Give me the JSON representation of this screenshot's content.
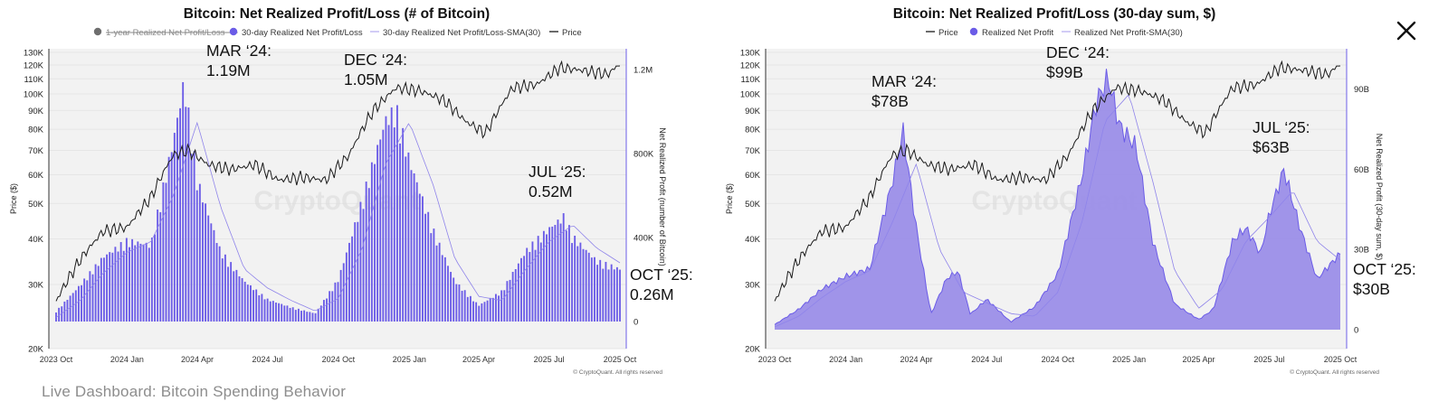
{
  "footer_caption": "Live Dashboard: Bitcoin Spending Behavior",
  "colors": {
    "accent": "#6b5ce7",
    "area_fill": "#9b8ee8",
    "price_line": "#1a1a1a",
    "plot_bg": "#f2f2f2",
    "legend_disabled": "#6e6e6e"
  },
  "close_icon": "close-icon",
  "chart_data": [
    {
      "type": "bar",
      "title": "Bitcoin: Net Realized Profit/Loss (# of Bitcoin)",
      "legend": [
        {
          "label": "1-year Realized Net Profit/Loss",
          "marker": "dot",
          "color": "#6e6e6e",
          "disabled": true
        },
        {
          "label": "30-day Realized Net Profit/Loss",
          "marker": "dot",
          "color": "#6b5ce7",
          "disabled": false
        },
        {
          "label": "30-day Realized Net Profit/Loss-SMA(30)",
          "marker": "line",
          "color": "#b9b1f0",
          "disabled": false
        },
        {
          "label": "Price",
          "marker": "line",
          "color": "#1a1a1a",
          "disabled": false
        }
      ],
      "ylabel_left": "Price ($)",
      "ylabel_right": "Net Realized Profit (number of Bitcoin)",
      "scale_left": "log",
      "left_ticks": [
        "130K",
        "120K",
        "110K",
        "100K",
        "90K",
        "80K",
        "70K",
        "60K",
        "50K",
        "40K",
        "30K",
        "20K"
      ],
      "right_ticks": [
        "1.2M",
        "800K",
        "400K",
        "0"
      ],
      "ylim_right": [
        0,
        1300000
      ],
      "x_ticks": [
        "2023 Oct",
        "2024 Jan",
        "2024 Apr",
        "2024 Jul",
        "2024 Oct",
        "2025 Jan",
        "2025 Apr",
        "2025 Jul",
        "2025 Oct"
      ],
      "series": [
        {
          "name": "30-day Realized Net Profit/Loss",
          "style": "bars",
          "x": [
            "2023-10-01",
            "2023-11-01",
            "2023-12-01",
            "2024-01-01",
            "2024-02-01",
            "2024-03-01",
            "2024-03-15",
            "2024-04-01",
            "2024-05-01",
            "2024-06-01",
            "2024-07-01",
            "2024-08-01",
            "2024-09-01",
            "2024-10-01",
            "2024-11-01",
            "2024-12-01",
            "2024-12-15",
            "2025-01-01",
            "2025-02-01",
            "2025-03-01",
            "2025-04-01",
            "2025-05-01",
            "2025-06-01",
            "2025-07-01",
            "2025-07-20",
            "2025-08-01",
            "2025-09-01",
            "2025-10-01"
          ],
          "values": [
            50000,
            180000,
            320000,
            400000,
            380000,
            900000,
            1190000,
            700000,
            350000,
            200000,
            110000,
            70000,
            40000,
            210000,
            600000,
            1000000,
            1050000,
            800000,
            450000,
            200000,
            80000,
            150000,
            350000,
            460000,
            520000,
            420000,
            300000,
            260000
          ]
        },
        {
          "name": "30-day Realized Net Profit/Loss-SMA(30)",
          "style": "line",
          "x": [
            "2023-10-01",
            "2023-11-01",
            "2023-12-01",
            "2024-01-01",
            "2024-02-01",
            "2024-03-01",
            "2024-04-01",
            "2024-05-01",
            "2024-06-01",
            "2024-07-01",
            "2024-08-01",
            "2024-09-01",
            "2024-10-01",
            "2024-11-01",
            "2024-12-01",
            "2025-01-01",
            "2025-02-01",
            "2025-03-01",
            "2025-04-01",
            "2025-05-01",
            "2025-06-01",
            "2025-07-01",
            "2025-08-01",
            "2025-09-01",
            "2025-10-01"
          ],
          "values": [
            20000,
            100000,
            230000,
            330000,
            380000,
            600000,
            950000,
            550000,
            250000,
            160000,
            100000,
            50000,
            110000,
            350000,
            750000,
            950000,
            650000,
            300000,
            120000,
            100000,
            250000,
            380000,
            460000,
            350000,
            280000
          ]
        },
        {
          "name": "Price",
          "style": "line",
          "x": [
            "2023-10-01",
            "2023-11-01",
            "2023-12-01",
            "2024-01-01",
            "2024-02-01",
            "2024-03-01",
            "2024-03-20",
            "2024-04-15",
            "2024-05-15",
            "2024-06-15",
            "2024-07-15",
            "2024-08-15",
            "2024-09-15",
            "2024-10-15",
            "2024-11-15",
            "2024-12-15",
            "2025-01-15",
            "2025-02-15",
            "2025-03-15",
            "2025-04-10",
            "2025-05-15",
            "2025-06-15",
            "2025-07-15",
            "2025-08-15",
            "2025-09-15",
            "2025-10-01"
          ],
          "values": [
            27000,
            35000,
            42000,
            43000,
            52000,
            68000,
            70000,
            64000,
            62000,
            64000,
            58000,
            59000,
            58000,
            68000,
            90000,
            104000,
            102000,
            96000,
            84000,
            78000,
            104000,
            106000,
            118000,
            116000,
            113000,
            121000
          ]
        }
      ],
      "annotations": [
        {
          "text": [
            "MAR ‘24:",
            "1.19M"
          ],
          "x": "2024-03-01",
          "y": 1190000
        },
        {
          "text": [
            "DEC ‘24:",
            "1.05M"
          ],
          "x": "2024-11-20",
          "y": 1050000
        },
        {
          "text": [
            "JUL ‘25:",
            "0.52M"
          ],
          "x": "2025-07-01",
          "y": 520000
        },
        {
          "text": [
            "OCT ‘25:",
            "0.26M"
          ],
          "x": "2025-10-08",
          "y": 260000
        }
      ],
      "watermark": "CryptoQuant",
      "copyright": "© CryptoQuant. All rights reserved"
    },
    {
      "type": "area",
      "title": "Bitcoin: Net Realized Profit/Loss (30-day sum, $)",
      "legend": [
        {
          "label": "Price",
          "marker": "line",
          "color": "#1a1a1a",
          "disabled": false
        },
        {
          "label": "Realized Net Profit",
          "marker": "dot",
          "color": "#6b5ce7",
          "disabled": false
        },
        {
          "label": "Realized Net Profit-SMA(30)",
          "marker": "line",
          "color": "#b9b1f0",
          "disabled": false
        }
      ],
      "ylabel_left": "Price ($)",
      "ylabel_right": "Net Realized Profit (30-day sum, $)",
      "scale_left": "log",
      "left_ticks": [
        "130K",
        "120K",
        "110K",
        "100K",
        "90K",
        "80K",
        "70K",
        "60K",
        "50K",
        "40K",
        "30K",
        "20K"
      ],
      "right_ticks": [
        "90B",
        "60B",
        "30B",
        "0"
      ],
      "ylim_right": [
        0,
        105000000000
      ],
      "x_ticks": [
        "2023 Oct",
        "2024 Jan",
        "2024 Apr",
        "2024 Jul",
        "2024 Oct",
        "2025 Jan",
        "2025 Apr",
        "2025 Jul",
        "2025 Oct"
      ],
      "series": [
        {
          "name": "Realized Net Profit",
          "style": "area",
          "x": [
            "2023-10-01",
            "2023-11-01",
            "2023-12-01",
            "2024-01-01",
            "2024-02-01",
            "2024-03-01",
            "2024-03-15",
            "2024-04-01",
            "2024-04-20",
            "2024-05-10",
            "2024-05-25",
            "2024-06-10",
            "2024-07-01",
            "2024-08-01",
            "2024-09-01",
            "2024-10-01",
            "2024-11-01",
            "2024-11-20",
            "2024-12-05",
            "2024-12-20",
            "2025-01-10",
            "2025-02-01",
            "2025-03-01",
            "2025-04-01",
            "2025-04-20",
            "2025-05-15",
            "2025-06-01",
            "2025-06-20",
            "2025-07-01",
            "2025-07-20",
            "2025-08-10",
            "2025-09-01",
            "2025-10-01"
          ],
          "values": [
            2000000000,
            8000000000,
            16000000000,
            21000000000,
            24000000000,
            58000000000,
            78000000000,
            40000000000,
            6000000000,
            20000000000,
            23000000000,
            6000000000,
            12000000000,
            3000000000,
            9000000000,
            22000000000,
            60000000000,
            90000000000,
            99000000000,
            80000000000,
            72000000000,
            34000000000,
            10000000000,
            4000000000,
            8000000000,
            35000000000,
            40000000000,
            30000000000,
            45000000000,
            63000000000,
            40000000000,
            20000000000,
            30000000000
          ]
        },
        {
          "name": "Realized Net Profit-SMA(30)",
          "style": "line",
          "x": [
            "2023-10-01",
            "2023-11-01",
            "2023-12-01",
            "2024-01-01",
            "2024-02-01",
            "2024-03-01",
            "2024-04-01",
            "2024-05-01",
            "2024-06-01",
            "2024-07-01",
            "2024-08-01",
            "2024-09-01",
            "2024-10-01",
            "2024-11-01",
            "2024-12-01",
            "2025-01-01",
            "2025-02-01",
            "2025-03-01",
            "2025-04-01",
            "2025-05-01",
            "2025-06-01",
            "2025-07-01",
            "2025-08-01",
            "2025-09-01",
            "2025-10-01"
          ],
          "values": [
            1000000000,
            5000000000,
            12000000000,
            18000000000,
            22000000000,
            40000000000,
            62000000000,
            30000000000,
            14000000000,
            10000000000,
            6000000000,
            5000000000,
            14000000000,
            40000000000,
            78000000000,
            88000000000,
            55000000000,
            22000000000,
            8000000000,
            15000000000,
            33000000000,
            42000000000,
            52000000000,
            33000000000,
            26000000000
          ]
        },
        {
          "name": "Price",
          "style": "line",
          "x": [
            "2023-10-01",
            "2023-11-01",
            "2023-12-01",
            "2024-01-01",
            "2024-02-01",
            "2024-03-01",
            "2024-03-20",
            "2024-04-15",
            "2024-05-15",
            "2024-06-15",
            "2024-07-15",
            "2024-08-15",
            "2024-09-15",
            "2024-10-15",
            "2024-11-15",
            "2024-12-15",
            "2025-01-15",
            "2025-02-15",
            "2025-03-15",
            "2025-04-10",
            "2025-05-15",
            "2025-06-15",
            "2025-07-15",
            "2025-08-15",
            "2025-09-15",
            "2025-10-01"
          ],
          "values": [
            27000,
            35000,
            42000,
            43000,
            52000,
            68000,
            70000,
            64000,
            62000,
            64000,
            58000,
            59000,
            58000,
            68000,
            90000,
            104000,
            102000,
            96000,
            84000,
            78000,
            104000,
            106000,
            118000,
            116000,
            113000,
            121000
          ]
        }
      ],
      "annotations": [
        {
          "text": [
            "MAR ‘24:",
            "$78B"
          ],
          "x": "2024-02-20",
          "y": 78000000000
        },
        {
          "text": [
            "DEC ‘24:",
            "$99B"
          ],
          "x": "2024-11-05",
          "y": 99000000000
        },
        {
          "text": [
            "JUL ‘25:",
            "$63B"
          ],
          "x": "2025-07-01",
          "y": 63000000000
        },
        {
          "text": [
            "OCT ‘25:",
            "$30B"
          ],
          "x": "2025-10-08",
          "y": 30000000000
        }
      ],
      "watermark": "CryptoQuant",
      "copyright": "© CryptoQuant. All rights reserved"
    }
  ]
}
